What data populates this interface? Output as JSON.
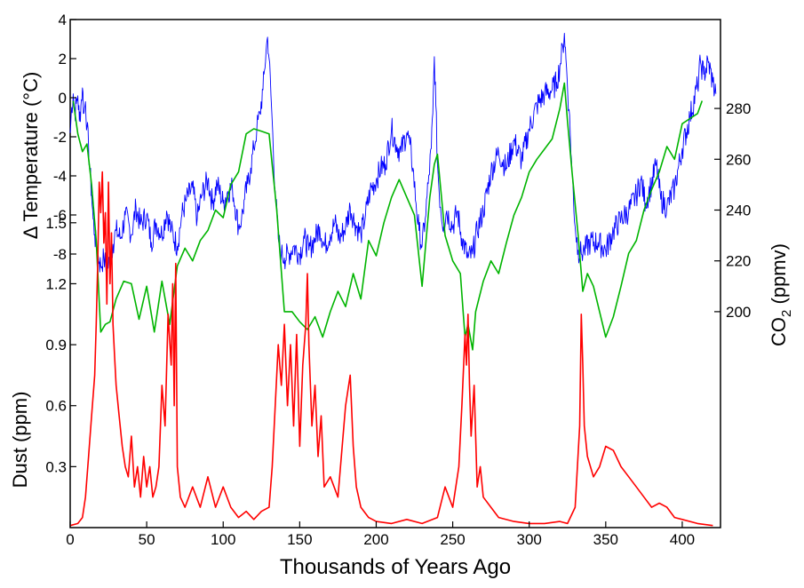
{
  "chart_data": {
    "type": "line",
    "title": "",
    "xlabel": "Thousands of Years Ago",
    "xlim": [
      0,
      425
    ],
    "x_ticks": [
      0,
      50,
      100,
      150,
      200,
      250,
      300,
      350,
      400
    ],
    "grid": false,
    "legend": "none",
    "axes": [
      {
        "id": "temperature",
        "side": "left",
        "label_main": "Δ Temperature (°C)",
        "ticks": [
          4,
          2,
          0,
          -2,
          -4,
          -6,
          -8
        ],
        "range": [
          -10.5,
          4
        ]
      },
      {
        "id": "co2",
        "side": "right",
        "label_prefix": "CO",
        "label_sub": "2",
        "label_suffix": " (ppmv)",
        "ticks": [
          280,
          260,
          240,
          220,
          200
        ],
        "range": [
          115,
          315
        ]
      },
      {
        "id": "dust",
        "side": "left",
        "label_main": "Dust (ppm)",
        "ticks": [
          1.5,
          1.2,
          0.9,
          0.6,
          0.3
        ],
        "range": [
          0,
          2.5
        ]
      }
    ],
    "series": [
      {
        "axis": "temperature",
        "color": "#0000ff",
        "x": [
          0,
          1,
          2,
          3,
          4,
          5,
          6,
          7,
          8,
          9,
          10,
          11,
          12,
          13,
          14,
          15,
          16,
          17,
          18,
          19,
          20,
          22,
          24,
          26,
          28,
          30,
          33,
          36,
          40,
          43,
          46,
          50,
          53,
          56,
          60,
          63,
          66,
          70,
          73,
          76,
          80,
          83,
          86,
          90,
          93,
          96,
          100,
          103,
          106,
          110,
          112,
          114,
          116,
          118,
          120,
          122,
          124,
          126,
          127,
          128,
          129,
          130,
          132,
          134,
          136,
          138,
          140,
          143,
          146,
          150,
          153,
          156,
          160,
          163,
          166,
          170,
          173,
          176,
          180,
          183,
          186,
          190,
          193,
          196,
          200,
          203,
          206,
          210,
          213,
          216,
          220,
          222,
          224,
          226,
          228,
          230,
          232,
          234,
          236,
          237,
          238,
          239,
          240,
          242,
          244,
          246,
          250,
          253,
          256,
          260,
          263,
          266,
          270,
          275,
          280,
          285,
          290,
          295,
          300,
          305,
          310,
          315,
          318,
          320,
          322,
          323,
          324,
          326,
          328,
          330,
          332,
          334,
          336,
          340,
          345,
          350,
          355,
          360,
          365,
          370,
          373,
          376,
          380,
          383,
          386,
          390,
          395,
          400,
          405,
          410,
          412,
          414,
          417,
          420,
          422
        ],
        "values": [
          -1.8,
          -0.5,
          0.2,
          -0.8,
          -0.3,
          0.1,
          -1.2,
          -0.4,
          0.5,
          -0.8,
          -0.2,
          -1.5,
          -2.5,
          -3.8,
          -5.0,
          -6.2,
          -7.0,
          -7.6,
          -8.0,
          -8.4,
          -8.6,
          -8.2,
          -8.8,
          -8.3,
          -7.5,
          -6.8,
          -7.2,
          -6.0,
          -7.0,
          -5.6,
          -6.5,
          -6.0,
          -7.4,
          -6.4,
          -7.0,
          -5.8,
          -6.8,
          -7.6,
          -6.0,
          -5.2,
          -4.6,
          -6.2,
          -5.0,
          -4.2,
          -5.4,
          -4.4,
          -5.4,
          -4.8,
          -4.6,
          -6.6,
          -6.2,
          -5.2,
          -4.4,
          -3.6,
          -2.6,
          -1.6,
          -0.8,
          0.4,
          1.4,
          2.4,
          3.1,
          2.0,
          -1.2,
          -4.8,
          -7.2,
          -8.0,
          -8.2,
          -8.0,
          -7.6,
          -8.0,
          -7.2,
          -7.8,
          -7.2,
          -6.6,
          -7.6,
          -7.0,
          -6.4,
          -7.2,
          -6.6,
          -5.6,
          -6.4,
          -7.0,
          -6.0,
          -4.8,
          -4.2,
          -3.6,
          -3.4,
          -1.6,
          -2.4,
          -2.8,
          -1.8,
          -2.4,
          -3.6,
          -5.4,
          -6.8,
          -7.6,
          -6.2,
          -4.4,
          -2.6,
          -0.8,
          2.1,
          -0.4,
          -3.4,
          -5.6,
          -6.6,
          -5.8,
          -6.6,
          -5.8,
          -7.2,
          -8.2,
          -8.0,
          -6.8,
          -5.8,
          -3.8,
          -2.8,
          -3.6,
          -2.2,
          -3.2,
          -1.6,
          -0.4,
          0.2,
          0.4,
          0.8,
          1.6,
          2.6,
          3.3,
          2.0,
          -0.6,
          -3.8,
          -6.6,
          -7.8,
          -8.0,
          -7.8,
          -7.4,
          -7.4,
          -7.8,
          -6.8,
          -6.2,
          -5.8,
          -5.0,
          -4.2,
          -5.4,
          -4.4,
          -3.4,
          -5.2,
          -5.6,
          -4.6,
          -2.6,
          -1.0,
          0.6,
          1.8,
          1.2,
          1.8,
          0.8,
          0.2
        ]
      },
      {
        "axis": "co2",
        "color": "#00b400",
        "x": [
          2,
          5,
          8,
          11,
          14,
          17,
          20,
          23,
          26,
          30,
          35,
          40,
          45,
          50,
          55,
          60,
          65,
          70,
          75,
          80,
          85,
          90,
          95,
          100,
          105,
          110,
          115,
          120,
          125,
          130,
          135,
          140,
          145,
          150,
          155,
          160,
          165,
          170,
          175,
          180,
          185,
          190,
          195,
          200,
          205,
          210,
          215,
          220,
          225,
          230,
          235,
          238,
          240,
          245,
          250,
          255,
          258,
          260,
          263,
          265,
          270,
          275,
          280,
          285,
          290,
          295,
          300,
          305,
          310,
          315,
          320,
          323,
          325,
          328,
          332,
          335,
          338,
          342,
          346,
          350,
          355,
          360,
          365,
          370,
          375,
          380,
          385,
          390,
          395,
          400,
          405,
          410,
          413
        ],
        "values": [
          283,
          270,
          263,
          266,
          250,
          228,
          192,
          195,
          196,
          205,
          212,
          211,
          197,
          210,
          192,
          212,
          195,
          218,
          225,
          220,
          228,
          232,
          240,
          237,
          250,
          255,
          270,
          272,
          271,
          270,
          240,
          200,
          200,
          196,
          193,
          198,
          190,
          200,
          208,
          202,
          215,
          205,
          228,
          222,
          235,
          245,
          252,
          245,
          238,
          210,
          245,
          258,
          262,
          230,
          220,
          215,
          190,
          195,
          185,
          200,
          212,
          220,
          215,
          227,
          238,
          245,
          255,
          260,
          264,
          268,
          280,
          290,
          275,
          255,
          230,
          208,
          215,
          210,
          200,
          190,
          198,
          210,
          223,
          228,
          240,
          248,
          255,
          265,
          260,
          274,
          276,
          278,
          283
        ]
      },
      {
        "axis": "dust",
        "color": "#ff0000",
        "x": [
          0,
          5,
          8,
          10,
          12,
          14,
          16,
          17,
          18,
          19,
          20,
          21,
          22,
          23,
          24,
          25,
          26,
          27,
          28,
          29,
          30,
          32,
          34,
          36,
          38,
          40,
          42,
          44,
          46,
          48,
          50,
          52,
          54,
          56,
          58,
          60,
          62,
          64,
          66,
          67,
          68,
          69,
          70,
          72,
          75,
          80,
          85,
          90,
          95,
          100,
          105,
          110,
          115,
          120,
          125,
          130,
          132,
          134,
          136,
          138,
          140,
          142,
          144,
          146,
          148,
          150,
          152,
          154,
          155,
          156,
          158,
          160,
          162,
          164,
          166,
          170,
          175,
          180,
          183,
          185,
          187,
          190,
          195,
          200,
          210,
          220,
          230,
          240,
          245,
          250,
          254,
          256,
          258,
          259,
          260,
          261,
          262,
          264,
          266,
          268,
          270,
          275,
          280,
          290,
          300,
          310,
          320,
          325,
          330,
          333,
          334,
          335,
          336,
          338,
          342,
          346,
          350,
          355,
          360,
          365,
          370,
          375,
          380,
          385,
          390,
          395,
          400,
          410,
          420
        ],
        "values": [
          0.01,
          0.02,
          0.05,
          0.15,
          0.35,
          0.55,
          0.75,
          1.0,
          1.3,
          1.7,
          1.55,
          1.75,
          1.4,
          1.55,
          1.1,
          1.7,
          1.2,
          1.45,
          1.0,
          0.85,
          0.7,
          0.55,
          0.4,
          0.3,
          0.25,
          0.45,
          0.2,
          0.3,
          0.15,
          0.35,
          0.2,
          0.3,
          0.15,
          0.2,
          0.3,
          0.7,
          0.5,
          1.05,
          0.8,
          1.2,
          0.6,
          1.3,
          0.3,
          0.15,
          0.1,
          0.2,
          0.1,
          0.25,
          0.1,
          0.2,
          0.1,
          0.05,
          0.08,
          0.04,
          0.08,
          0.1,
          0.3,
          0.6,
          0.9,
          0.7,
          1.0,
          0.6,
          0.9,
          0.5,
          0.95,
          0.4,
          0.8,
          1.0,
          1.25,
          0.9,
          0.5,
          0.7,
          0.35,
          0.55,
          0.2,
          0.25,
          0.15,
          0.6,
          0.75,
          0.4,
          0.2,
          0.1,
          0.05,
          0.03,
          0.02,
          0.04,
          0.02,
          0.05,
          0.2,
          0.1,
          0.3,
          0.6,
          0.95,
          0.8,
          1.05,
          0.7,
          0.45,
          0.7,
          0.2,
          0.3,
          0.15,
          0.1,
          0.05,
          0.03,
          0.02,
          0.02,
          0.03,
          0.02,
          0.1,
          0.5,
          1.05,
          0.8,
          0.5,
          0.35,
          0.25,
          0.3,
          0.4,
          0.38,
          0.3,
          0.25,
          0.2,
          0.15,
          0.1,
          0.12,
          0.1,
          0.05,
          0.04,
          0.02,
          0.01
        ]
      }
    ]
  }
}
